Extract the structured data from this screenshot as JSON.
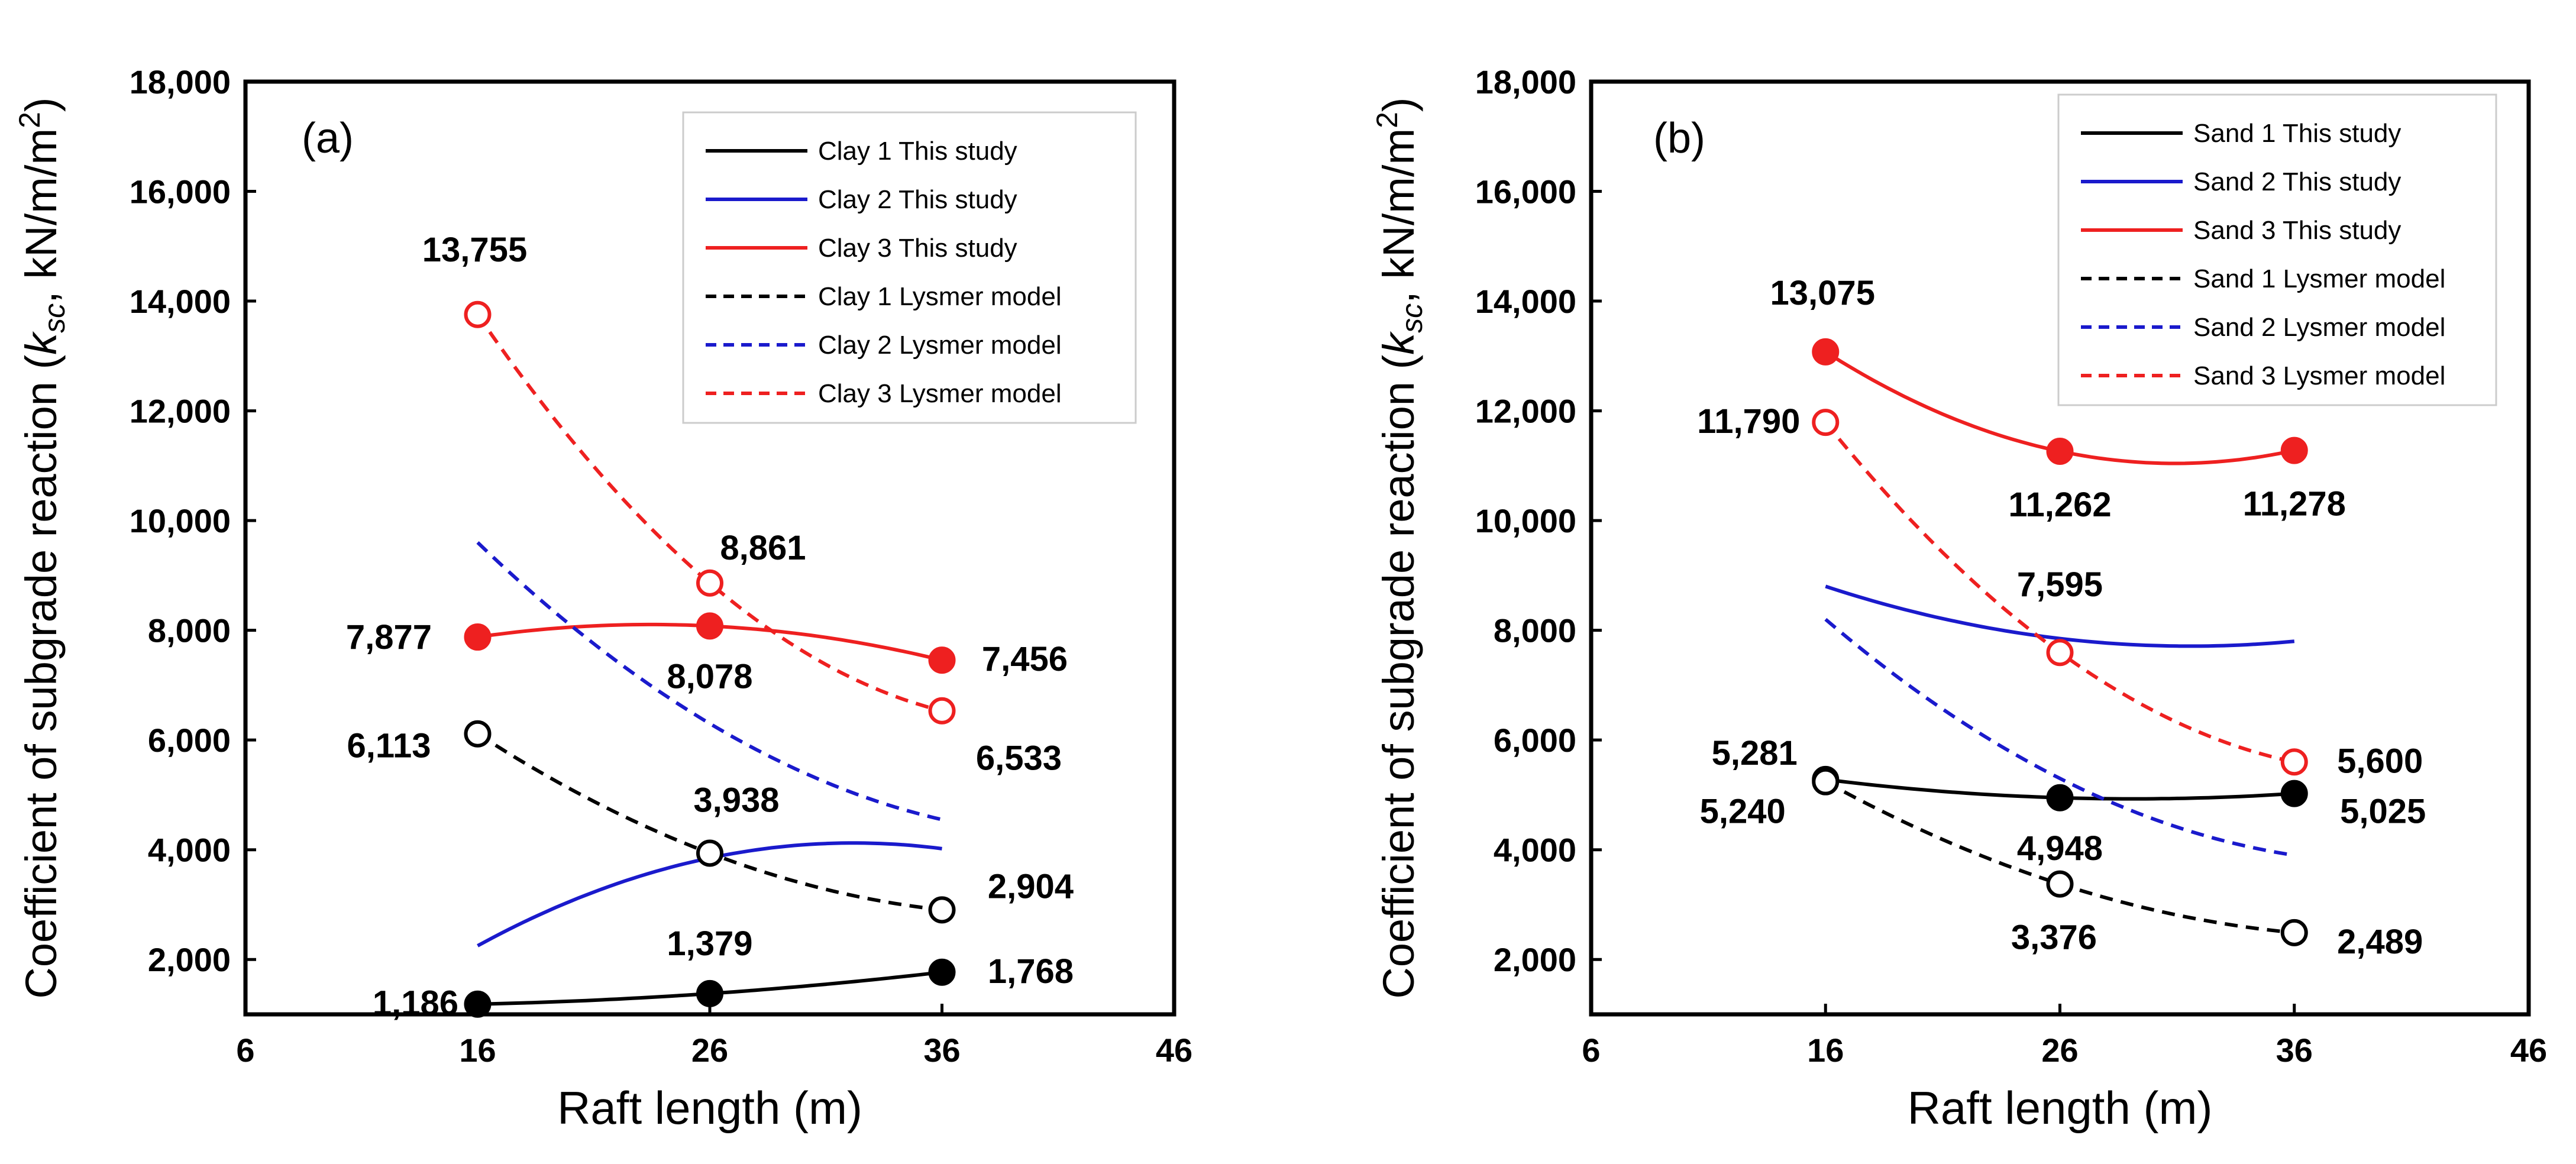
{
  "chart_data": [
    {
      "type": "line",
      "panel": "(a)",
      "xlabel": "Raft length (m)",
      "ylabel": "Coefficient of subgrade reaction (k",
      "ylabel_sub": "sc",
      "ylabel_unit": ", kN/m/m",
      "ylabel_sup": "2",
      "ylabel_close": ")",
      "xlim": [
        6,
        46
      ],
      "ylim": [
        1000,
        18000
      ],
      "xticks": [
        6,
        16,
        26,
        36,
        46
      ],
      "xtick_labels": [
        "6",
        "16",
        "26",
        "36",
        "46"
      ],
      "yticks": [
        2000,
        4000,
        6000,
        8000,
        10000,
        12000,
        14000,
        16000,
        18000
      ],
      "ytick_labels": [
        "2,000",
        "4,000",
        "6,000",
        "8,000",
        "10,000",
        "12,000",
        "14,000",
        "16,000",
        "18,000"
      ],
      "legend_position": "top-right",
      "series": [
        {
          "name": "Clay 1 This study",
          "color": "#000000",
          "dash": "solid",
          "marker": "filled",
          "x": [
            16,
            26,
            36
          ],
          "values": [
            1186,
            1379,
            1768
          ],
          "labels": [
            "1,186",
            "1,379",
            "1,768"
          ]
        },
        {
          "name": "Clay 2 This study",
          "color": "#1a1acc",
          "dash": "solid",
          "marker": "none",
          "x": [
            16,
            26,
            36
          ],
          "values": [
            2250,
            3850,
            4020
          ],
          "labels": []
        },
        {
          "name": "Clay 3 This study",
          "color": "#ee2020",
          "dash": "solid",
          "marker": "filled",
          "x": [
            16,
            26,
            36
          ],
          "values": [
            7877,
            8078,
            7456
          ],
          "labels": [
            "7,877",
            "8,078",
            "7,456"
          ]
        },
        {
          "name": "Clay 1 Lysmer model",
          "color": "#000000",
          "dash": "dashed",
          "marker": "open",
          "x": [
            16,
            26,
            36
          ],
          "values": [
            6113,
            3938,
            2904
          ],
          "labels": [
            "6,113",
            "3,938",
            "2,904"
          ]
        },
        {
          "name": "Clay 2 Lysmer model",
          "color": "#1a1acc",
          "dash": "dashed",
          "marker": "none",
          "x": [
            16,
            26,
            36
          ],
          "values": [
            9600,
            6300,
            4550
          ],
          "labels": []
        },
        {
          "name": "Clay 3 Lysmer model",
          "color": "#ee2020",
          "dash": "dashed",
          "marker": "open",
          "x": [
            16,
            26,
            36
          ],
          "values": [
            13755,
            8861,
            6533
          ],
          "labels": [
            "13,755",
            "8,861",
            "6,533"
          ]
        }
      ]
    },
    {
      "type": "line",
      "panel": "(b)",
      "xlabel": "Raft length (m)",
      "ylabel": "Coefficient of subgrade reaction (k",
      "ylabel_sub": "sc",
      "ylabel_unit": ", kN/m/m",
      "ylabel_sup": "2",
      "ylabel_close": ")",
      "xlim": [
        6,
        46
      ],
      "ylim": [
        1000,
        18000
      ],
      "xticks": [
        6,
        16,
        26,
        36,
        46
      ],
      "xtick_labels": [
        "6",
        "16",
        "26",
        "36",
        "46"
      ],
      "yticks": [
        2000,
        4000,
        6000,
        8000,
        10000,
        12000,
        14000,
        16000,
        18000
      ],
      "ytick_labels": [
        "2,000",
        "4,000",
        "6,000",
        "8,000",
        "10,000",
        "12,000",
        "14,000",
        "16,000",
        "18,000"
      ],
      "legend_position": "top-right",
      "series": [
        {
          "name": "Sand 1 This study",
          "color": "#000000",
          "dash": "solid",
          "marker": "filled",
          "x": [
            16,
            26,
            36
          ],
          "values": [
            5281,
            4948,
            5025
          ],
          "labels": [
            "5,281",
            "4,948",
            "5,025"
          ]
        },
        {
          "name": "Sand 2 This study",
          "color": "#1a1acc",
          "dash": "solid",
          "marker": "none",
          "x": [
            16,
            26,
            36
          ],
          "values": [
            8800,
            7850,
            7800
          ],
          "labels": []
        },
        {
          "name": "Sand 3 This study",
          "color": "#ee2020",
          "dash": "solid",
          "marker": "filled",
          "x": [
            16,
            26,
            36
          ],
          "values": [
            13075,
            11262,
            11278
          ],
          "labels": [
            "13,075",
            "11,262",
            "11,278"
          ]
        },
        {
          "name": "Sand 1 Lysmer model",
          "color": "#000000",
          "dash": "dashed",
          "marker": "open",
          "x": [
            16,
            26,
            36
          ],
          "values": [
            5240,
            3376,
            2489
          ],
          "labels": [
            "5,240",
            "3,376",
            "2,489"
          ]
        },
        {
          "name": "Sand 2 Lysmer model",
          "color": "#1a1acc",
          "dash": "dashed",
          "marker": "none",
          "x": [
            16,
            26,
            36
          ],
          "values": [
            8200,
            5300,
            3900
          ],
          "labels": []
        },
        {
          "name": "Sand 3 Lysmer model",
          "color": "#ee2020",
          "dash": "dashed",
          "marker": "open",
          "x": [
            16,
            26,
            36
          ],
          "values": [
            11790,
            7595,
            5600
          ],
          "labels": [
            "11,790",
            "7,595",
            "5,600"
          ]
        }
      ]
    }
  ]
}
